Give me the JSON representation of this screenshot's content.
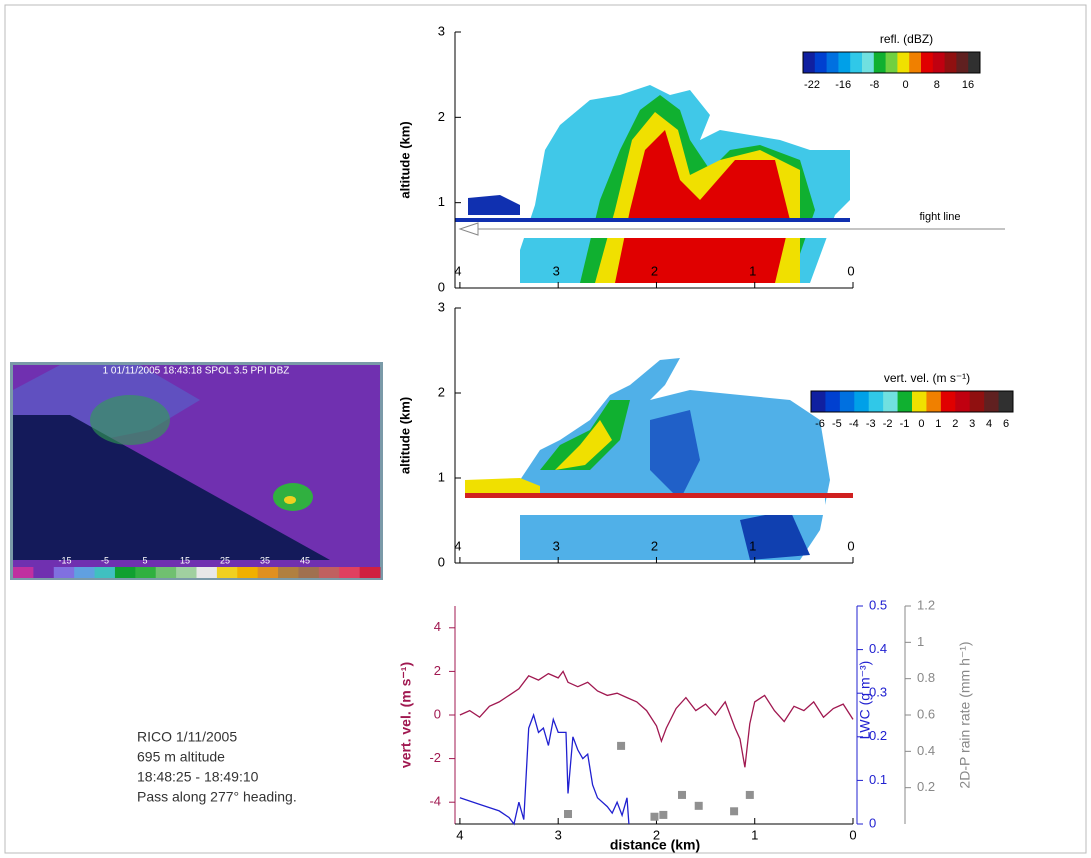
{
  "ppi": {
    "title": "1 01/11/2005 18:43:18 SPOL 3.5 PPI DBZ",
    "colorbar_ticks": [
      -15,
      -5,
      5,
      15,
      25,
      35,
      45
    ],
    "colorbar_colors": [
      "#c030a0",
      "#7030b0",
      "#8070e0",
      "#60a0e0",
      "#40c0c0",
      "#10a030",
      "#30b040",
      "#70c070",
      "#a0d0a0",
      "#e8e8e8",
      "#f0d020",
      "#f0b000",
      "#e09020",
      "#b08040",
      "#a07050",
      "#c06060",
      "#e04060",
      "#d02040"
    ]
  },
  "caption": [
    "RICO 1/11/2005",
    "695 m altitude",
    "18:48:25 - 18:49:10",
    "Pass along 277° heading."
  ],
  "refl_panel": {
    "ylabel": "altitude (km)",
    "ylim": [
      0,
      3
    ],
    "yticks": [
      0,
      1,
      2,
      3
    ],
    "xlim": [
      4.05,
      0
    ],
    "xticks": [
      4,
      3,
      2,
      1,
      0
    ],
    "colorbar_title": "refl. (dBZ)",
    "colorbar_ticks": [
      -22,
      -16,
      -8,
      0,
      8,
      16
    ],
    "colorbar_colors": [
      "#1020a0",
      "#0040d0",
      "#0070e0",
      "#00a0e8",
      "#30c8e8",
      "#70e0e0",
      "#10b030",
      "#70d040",
      "#f0e000",
      "#f08000",
      "#e00000",
      "#c00010",
      "#901010",
      "#602020",
      "#303030"
    ],
    "annotation": "fight line"
  },
  "vel_panel": {
    "ylabel": "altitude (km)",
    "ylim": [
      0,
      3
    ],
    "yticks": [
      0,
      1,
      2,
      3
    ],
    "xlim": [
      4.05,
      0
    ],
    "xticks": [
      4,
      3,
      2,
      1,
      0
    ],
    "colorbar_title": "vert. vel. (m s⁻¹)",
    "colorbar_ticks": [
      -6,
      -5,
      -4,
      -3,
      -2,
      -1,
      0,
      1,
      2,
      3,
      4,
      6
    ],
    "colorbar_colors": [
      "#1020a0",
      "#0040d0",
      "#0070e0",
      "#00a0e8",
      "#30c8e8",
      "#70e0e0",
      "#10b030",
      "#f0e000",
      "#f08000",
      "#e00000",
      "#c00010",
      "#901010",
      "#602020",
      "#303030"
    ]
  },
  "chart_data": {
    "type": "line",
    "xlabel": "distance (km)",
    "ylabel": "vert. vel. (m s⁻¹)",
    "y2label": "LWC (g m⁻³)",
    "y3label": "2D-P rain rate (mm h⁻¹)",
    "xlim": [
      4.05,
      0
    ],
    "xticks": [
      4,
      3,
      2,
      1,
      0
    ],
    "ylim": [
      -5,
      5
    ],
    "yticks": [
      -4,
      -2,
      0,
      2,
      4
    ],
    "y2lim": [
      0,
      0.5
    ],
    "y2ticks": [
      0,
      0.1,
      0.2,
      0.3,
      0.4,
      0.5
    ],
    "y3lim": [
      0,
      1.2
    ],
    "y3ticks": [
      0.2,
      0.4,
      0.6,
      0.8,
      1,
      1.2
    ],
    "series": [
      {
        "color": "#a01850",
        "x": [
          4.0,
          3.9,
          3.8,
          3.7,
          3.6,
          3.5,
          3.4,
          3.3,
          3.2,
          3.1,
          3.0,
          2.95,
          2.9,
          2.8,
          2.7,
          2.6,
          2.5,
          2.4,
          2.3,
          2.2,
          2.1,
          2.0,
          1.95,
          1.9,
          1.8,
          1.7,
          1.6,
          1.5,
          1.4,
          1.3,
          1.2,
          1.15,
          1.1,
          1.05,
          1.0,
          0.9,
          0.8,
          0.7,
          0.6,
          0.5,
          0.4,
          0.3,
          0.2,
          0.1,
          0.0
        ],
        "values": [
          0.0,
          0.2,
          -0.1,
          0.4,
          0.6,
          0.9,
          1.2,
          1.8,
          1.6,
          1.9,
          1.7,
          2.0,
          1.5,
          1.3,
          1.5,
          1.1,
          0.9,
          1.0,
          0.8,
          0.6,
          0.2,
          -0.5,
          -1.2,
          -0.6,
          0.3,
          0.8,
          0.2,
          0.5,
          0.0,
          0.6,
          -0.6,
          -1.1,
          -2.4,
          -0.4,
          0.6,
          0.9,
          0.2,
          -0.3,
          0.4,
          0.2,
          0.6,
          -0.1,
          0.3,
          0.5,
          -0.2
        ]
      },
      {
        "color": "#2020d0",
        "axis": "y2",
        "x": [
          4.0,
          3.8,
          3.6,
          3.5,
          3.45,
          3.4,
          3.35,
          3.3,
          3.25,
          3.2,
          3.15,
          3.1,
          3.05,
          3.0,
          2.95,
          2.92,
          2.9,
          2.85,
          2.8,
          2.75,
          2.7,
          2.65,
          2.6,
          2.5,
          2.45,
          2.4,
          2.35,
          2.3,
          2.28
        ],
        "values": [
          0.06,
          0.045,
          0.03,
          0.015,
          0.0,
          0.05,
          0.01,
          0.22,
          0.25,
          0.21,
          0.22,
          0.18,
          0.24,
          0.21,
          0.21,
          0.21,
          0.07,
          0.2,
          0.17,
          0.15,
          0.16,
          0.09,
          0.06,
          0.04,
          0.025,
          0.05,
          0.02,
          0.06,
          0.0
        ]
      },
      {
        "color": "#909090",
        "axis": "y3",
        "style": "markers",
        "x": [
          2.36,
          2.9,
          2.02,
          1.93,
          1.74,
          1.57,
          1.21,
          1.05
        ],
        "values": [
          0.43,
          0.055,
          0.04,
          0.05,
          0.16,
          0.1,
          0.07,
          0.16
        ]
      }
    ]
  }
}
